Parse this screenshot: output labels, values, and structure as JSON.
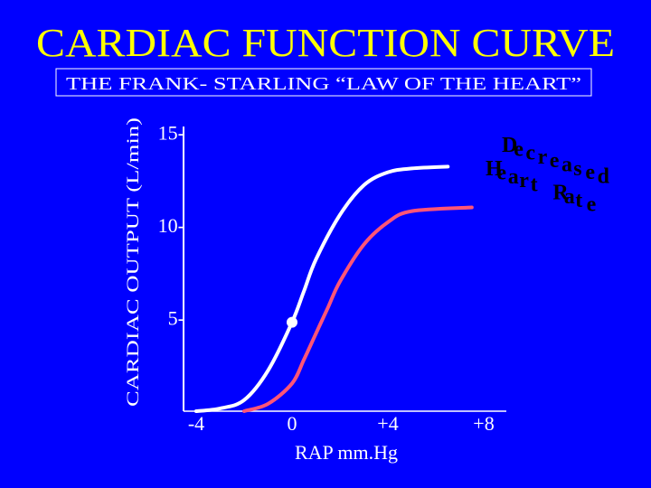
{
  "colors": {
    "background": "#0000FF",
    "title": "#FFFF00",
    "text": "#FFFFFF",
    "subtitle_box_border": "#FFFFFF",
    "normal_curve": "#FFFFFF",
    "decreased_hr_curve": "#FF5577",
    "annotation": "#000000",
    "axis": "#FFFFFF"
  },
  "slide": {
    "title": "CARDIAC  FUNCTION  CURVE",
    "subtitle": "THE  FRANK- STARLING “LAW  OF  THE  HEART”"
  },
  "chart_data": {
    "type": "line",
    "xlabel": "RAP mm.Hg",
    "ylabel": "CARDIAC  OUTPUT  (L/min)",
    "xlim": [
      -5,
      10
    ],
    "ylim": [
      0,
      15
    ],
    "x_ticks": [
      {
        "value": -4,
        "label": "-4"
      },
      {
        "value": 0,
        "label": "0"
      },
      {
        "value": 4,
        "label": "+4"
      },
      {
        "value": 8,
        "label": "+8"
      }
    ],
    "y_ticks": [
      {
        "value": 5,
        "label": "5-"
      },
      {
        "value": 10,
        "label": "10-"
      },
      {
        "value": 15,
        "label": "15-"
      }
    ],
    "series": [
      {
        "key": "normal",
        "color": "#FFFFFF",
        "points": [
          [
            -4,
            0
          ],
          [
            -3,
            0.15
          ],
          [
            -2,
            0.6
          ],
          [
            -1,
            2.2
          ],
          [
            0,
            4.8
          ],
          [
            0.5,
            6.5
          ],
          [
            1,
            8.2
          ],
          [
            2,
            10.6
          ],
          [
            3,
            12.2
          ],
          [
            4,
            12.9
          ],
          [
            5,
            13.1
          ],
          [
            6.5,
            13.2
          ]
        ]
      },
      {
        "key": "decreased_heart_rate",
        "name": "Decreased Heart Rate",
        "color": "#FF5577",
        "points": [
          [
            -2,
            0
          ],
          [
            -1,
            0.4
          ],
          [
            0,
            1.5
          ],
          [
            0.5,
            2.8
          ],
          [
            1,
            4.2
          ],
          [
            1.5,
            5.6
          ],
          [
            2,
            7
          ],
          [
            3,
            9
          ],
          [
            4,
            10.2
          ],
          [
            5,
            10.8
          ],
          [
            7.5,
            11
          ]
        ]
      }
    ],
    "marker": {
      "x": 0,
      "y": 4.8
    },
    "annotation": "Decreased Heart Rate",
    "grid": false,
    "legend": "none"
  }
}
